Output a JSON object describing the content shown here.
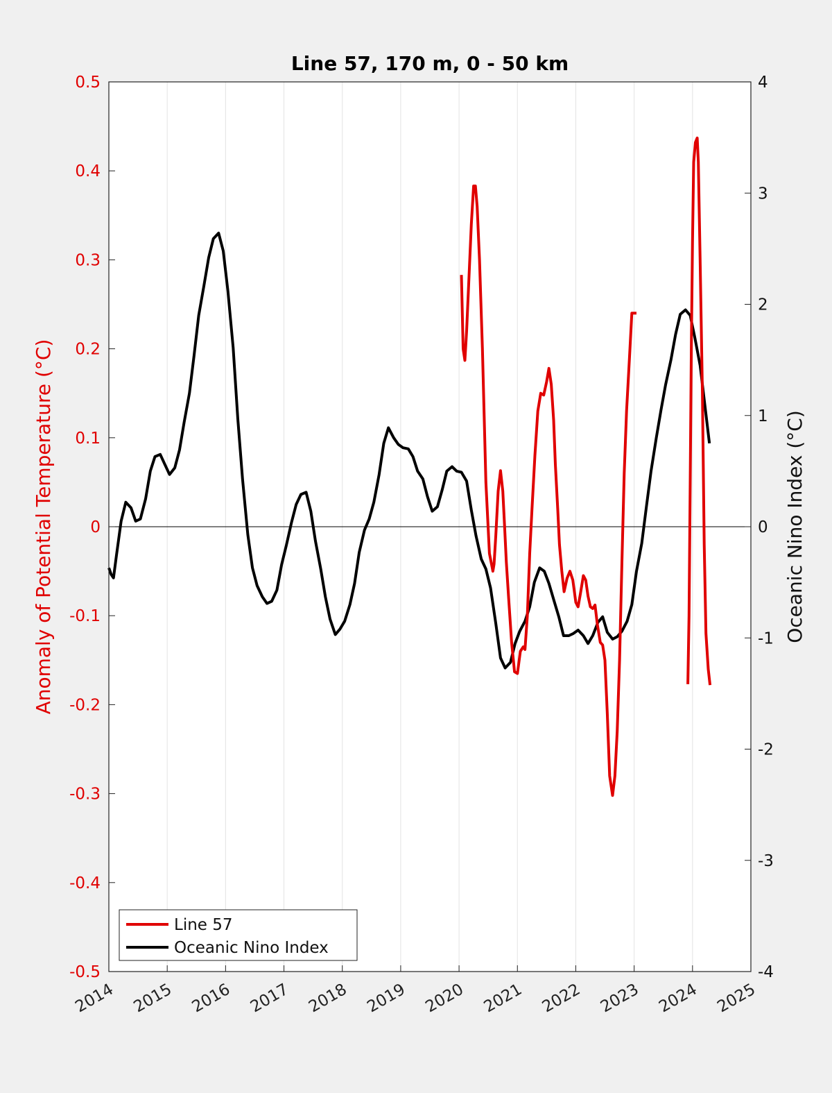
{
  "chart_data": {
    "type": "line",
    "title": "Line 57, 170 m, 0 - 50 km",
    "xlabel": "",
    "ylabel_left": "Anomaly of Potential Temperature (°C)",
    "ylabel_right": "Oceanic Nino Index (°C)",
    "xlim": [
      2014,
      2025
    ],
    "ylim_left": [
      -0.5,
      0.5
    ],
    "ylim_right": [
      -4,
      4
    ],
    "x_ticks": [
      "2014",
      "2015",
      "2016",
      "2017",
      "2018",
      "2019",
      "2020",
      "2021",
      "2022",
      "2023",
      "2024",
      "2025"
    ],
    "y_ticks_left": [
      "0.5",
      "0.4",
      "0.3",
      "0.2",
      "0.1",
      "0",
      "-0.1",
      "-0.2",
      "-0.3",
      "-0.4",
      "-0.5"
    ],
    "y_ticks_right": [
      "4",
      "3",
      "2",
      "1",
      "0",
      "-1",
      "-2",
      "-3",
      "-4"
    ],
    "grid": "vertical",
    "legend_position": "bottom-left",
    "colors": {
      "line57": "#e00000",
      "oni": "#000000",
      "left_axis": "#e00000",
      "right_axis": "#111111"
    },
    "series": [
      {
        "name": "Line 57",
        "axis": "left",
        "x": [
          2020.04,
          2020.07,
          2020.1,
          2020.13,
          2020.17,
          2020.21,
          2020.25,
          2020.28,
          2020.31,
          2020.35,
          2020.4,
          2020.46,
          2020.52,
          2020.58,
          2020.6,
          2020.63,
          2020.67,
          2020.71,
          2020.75,
          2020.78,
          2020.81,
          2020.85,
          2020.9,
          2020.95,
          2021.0,
          2021.05,
          2021.1,
          2021.13,
          2021.17,
          2021.21,
          2021.25,
          2021.3,
          2021.35,
          2021.4,
          2021.45,
          2021.5,
          2021.54,
          2021.58,
          2021.62,
          2021.65,
          2021.69,
          2021.72,
          2021.76,
          2021.8,
          2021.85,
          2021.9,
          2021.95,
          2022.0,
          2022.04,
          2022.08,
          2022.13,
          2022.17,
          2022.21,
          2022.25,
          2022.29,
          2022.33,
          2022.37,
          2022.42,
          2022.46,
          2022.5,
          2022.54,
          2022.58,
          2022.63,
          2022.67,
          2022.71,
          2022.75,
          2022.79,
          2022.83,
          2022.87,
          2022.92,
          2022.96,
          2023.0,
          2023.04
        ],
        "values": [
          0.283,
          0.2,
          0.187,
          0.22,
          0.28,
          0.34,
          0.383,
          0.383,
          0.36,
          0.3,
          0.2,
          0.05,
          -0.03,
          -0.05,
          -0.042,
          -0.01,
          0.04,
          0.063,
          0.04,
          0.0,
          -0.04,
          -0.08,
          -0.13,
          -0.163,
          -0.165,
          -0.14,
          -0.135,
          -0.138,
          -0.1,
          -0.03,
          0.02,
          0.08,
          0.13,
          0.15,
          0.148,
          0.163,
          0.178,
          0.16,
          0.12,
          0.07,
          0.02,
          -0.02,
          -0.05,
          -0.073,
          -0.058,
          -0.05,
          -0.06,
          -0.085,
          -0.09,
          -0.075,
          -0.055,
          -0.06,
          -0.078,
          -0.09,
          -0.092,
          -0.088,
          -0.11,
          -0.13,
          -0.133,
          -0.15,
          -0.21,
          -0.28,
          -0.302,
          -0.28,
          -0.23,
          -0.15,
          -0.04,
          0.06,
          0.13,
          0.19,
          0.24,
          0.24,
          0.24
        ]
      },
      {
        "name": "",
        "axis": "left",
        "x": [
          2023.92,
          2023.94,
          2023.96,
          2023.98,
          2024.0,
          2024.02,
          2024.05,
          2024.08,
          2024.1,
          2024.13,
          2024.17,
          2024.2,
          2024.23,
          2024.27,
          2024.3
        ],
        "values": [
          -0.177,
          -0.1,
          0.05,
          0.2,
          0.32,
          0.41,
          0.432,
          0.437,
          0.41,
          0.3,
          0.15,
          -0.02,
          -0.12,
          -0.16,
          -0.178
        ]
      },
      {
        "name": "Oceanic Nino Index",
        "axis": "right",
        "x": [
          2014.0,
          2014.04,
          2014.08,
          2014.13,
          2014.21,
          2014.29,
          2014.38,
          2014.46,
          2014.54,
          2014.63,
          2014.71,
          2014.79,
          2014.88,
          2014.96,
          2015.04,
          2015.13,
          2015.21,
          2015.29,
          2015.38,
          2015.46,
          2015.54,
          2015.63,
          2015.71,
          2015.79,
          2015.88,
          2015.96,
          2016.04,
          2016.13,
          2016.21,
          2016.29,
          2016.38,
          2016.46,
          2016.54,
          2016.63,
          2016.71,
          2016.79,
          2016.88,
          2016.96,
          2017.04,
          2017.13,
          2017.21,
          2017.29,
          2017.38,
          2017.46,
          2017.54,
          2017.63,
          2017.71,
          2017.79,
          2017.88,
          2017.96,
          2018.04,
          2018.13,
          2018.21,
          2018.29,
          2018.38,
          2018.46,
          2018.54,
          2018.63,
          2018.71,
          2018.79,
          2018.88,
          2018.96,
          2019.04,
          2019.13,
          2019.21,
          2019.29,
          2019.38,
          2019.46,
          2019.54,
          2019.63,
          2019.71,
          2019.79,
          2019.88,
          2019.96,
          2020.04,
          2020.13,
          2020.21,
          2020.29,
          2020.38,
          2020.46,
          2020.54,
          2020.63,
          2020.71,
          2020.79,
          2020.88,
          2020.96,
          2021.04,
          2021.13,
          2021.21,
          2021.29,
          2021.38,
          2021.46,
          2021.54,
          2021.63,
          2021.71,
          2021.79,
          2021.88,
          2021.96,
          2022.04,
          2022.13,
          2022.21,
          2022.29,
          2022.38,
          2022.46,
          2022.54,
          2022.63,
          2022.71,
          2022.79,
          2022.88,
          2022.96,
          2023.04,
          2023.13,
          2023.21,
          2023.29,
          2023.38,
          2023.46,
          2023.54,
          2023.63,
          2023.71,
          2023.79,
          2023.88,
          2023.96,
          2024.04,
          2024.13,
          2024.21,
          2024.29
        ],
        "values": [
          -0.37,
          -0.43,
          -0.46,
          -0.26,
          0.05,
          0.22,
          0.17,
          0.05,
          0.07,
          0.25,
          0.5,
          0.63,
          0.65,
          0.56,
          0.47,
          0.53,
          0.69,
          0.94,
          1.2,
          1.54,
          1.9,
          2.17,
          2.42,
          2.59,
          2.64,
          2.48,
          2.12,
          1.61,
          0.97,
          0.43,
          -0.07,
          -0.37,
          -0.53,
          -0.63,
          -0.69,
          -0.67,
          -0.57,
          -0.34,
          -0.17,
          0.04,
          0.2,
          0.29,
          0.31,
          0.14,
          -0.13,
          -0.38,
          -0.63,
          -0.83,
          -0.97,
          -0.92,
          -0.85,
          -0.7,
          -0.51,
          -0.23,
          -0.03,
          0.07,
          0.22,
          0.47,
          0.75,
          0.89,
          0.8,
          0.74,
          0.71,
          0.7,
          0.63,
          0.5,
          0.43,
          0.27,
          0.14,
          0.18,
          0.33,
          0.5,
          0.54,
          0.5,
          0.49,
          0.41,
          0.15,
          -0.08,
          -0.29,
          -0.38,
          -0.55,
          -0.87,
          -1.18,
          -1.27,
          -1.22,
          -1.05,
          -0.94,
          -0.85,
          -0.72,
          -0.5,
          -0.37,
          -0.4,
          -0.51,
          -0.67,
          -0.81,
          -0.98,
          -0.98,
          -0.96,
          -0.93,
          -0.98,
          -1.05,
          -0.98,
          -0.86,
          -0.81,
          -0.95,
          -1.01,
          -0.99,
          -0.94,
          -0.85,
          -0.7,
          -0.4,
          -0.15,
          0.18,
          0.5,
          0.8,
          1.05,
          1.28,
          1.5,
          1.73,
          1.91,
          1.95,
          1.9,
          1.7,
          1.45,
          1.1,
          0.75
        ]
      }
    ]
  }
}
